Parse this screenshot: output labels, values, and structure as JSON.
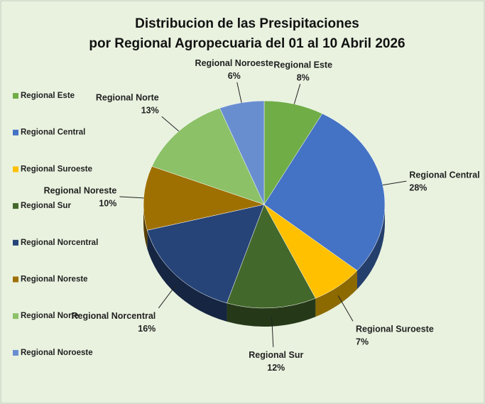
{
  "chart_data": {
    "type": "pie",
    "title": [
      "Distribucion de las Presipitaciones",
      "por Regional Agropecuaria del 01 al 10 Abril 2026"
    ],
    "categories": [
      "Regional Este",
      "Regional Central",
      "Regional Suroeste",
      "Regional Sur",
      "Regional Norcentral",
      "Regional Noreste",
      "Regional Norte",
      "Regional Noroeste"
    ],
    "values": [
      8,
      28,
      7,
      12,
      16,
      10,
      13,
      6
    ],
    "value_labels": [
      "8%",
      "28%",
      "7%",
      "12%",
      "16%",
      "10%",
      "13%",
      "6%"
    ],
    "colors": [
      "#70ad47",
      "#4472c4",
      "#ffc000",
      "#43682b",
      "#264478",
      "#9e7001",
      "#8cc168",
      "#698ed0"
    ],
    "legend": "left"
  }
}
